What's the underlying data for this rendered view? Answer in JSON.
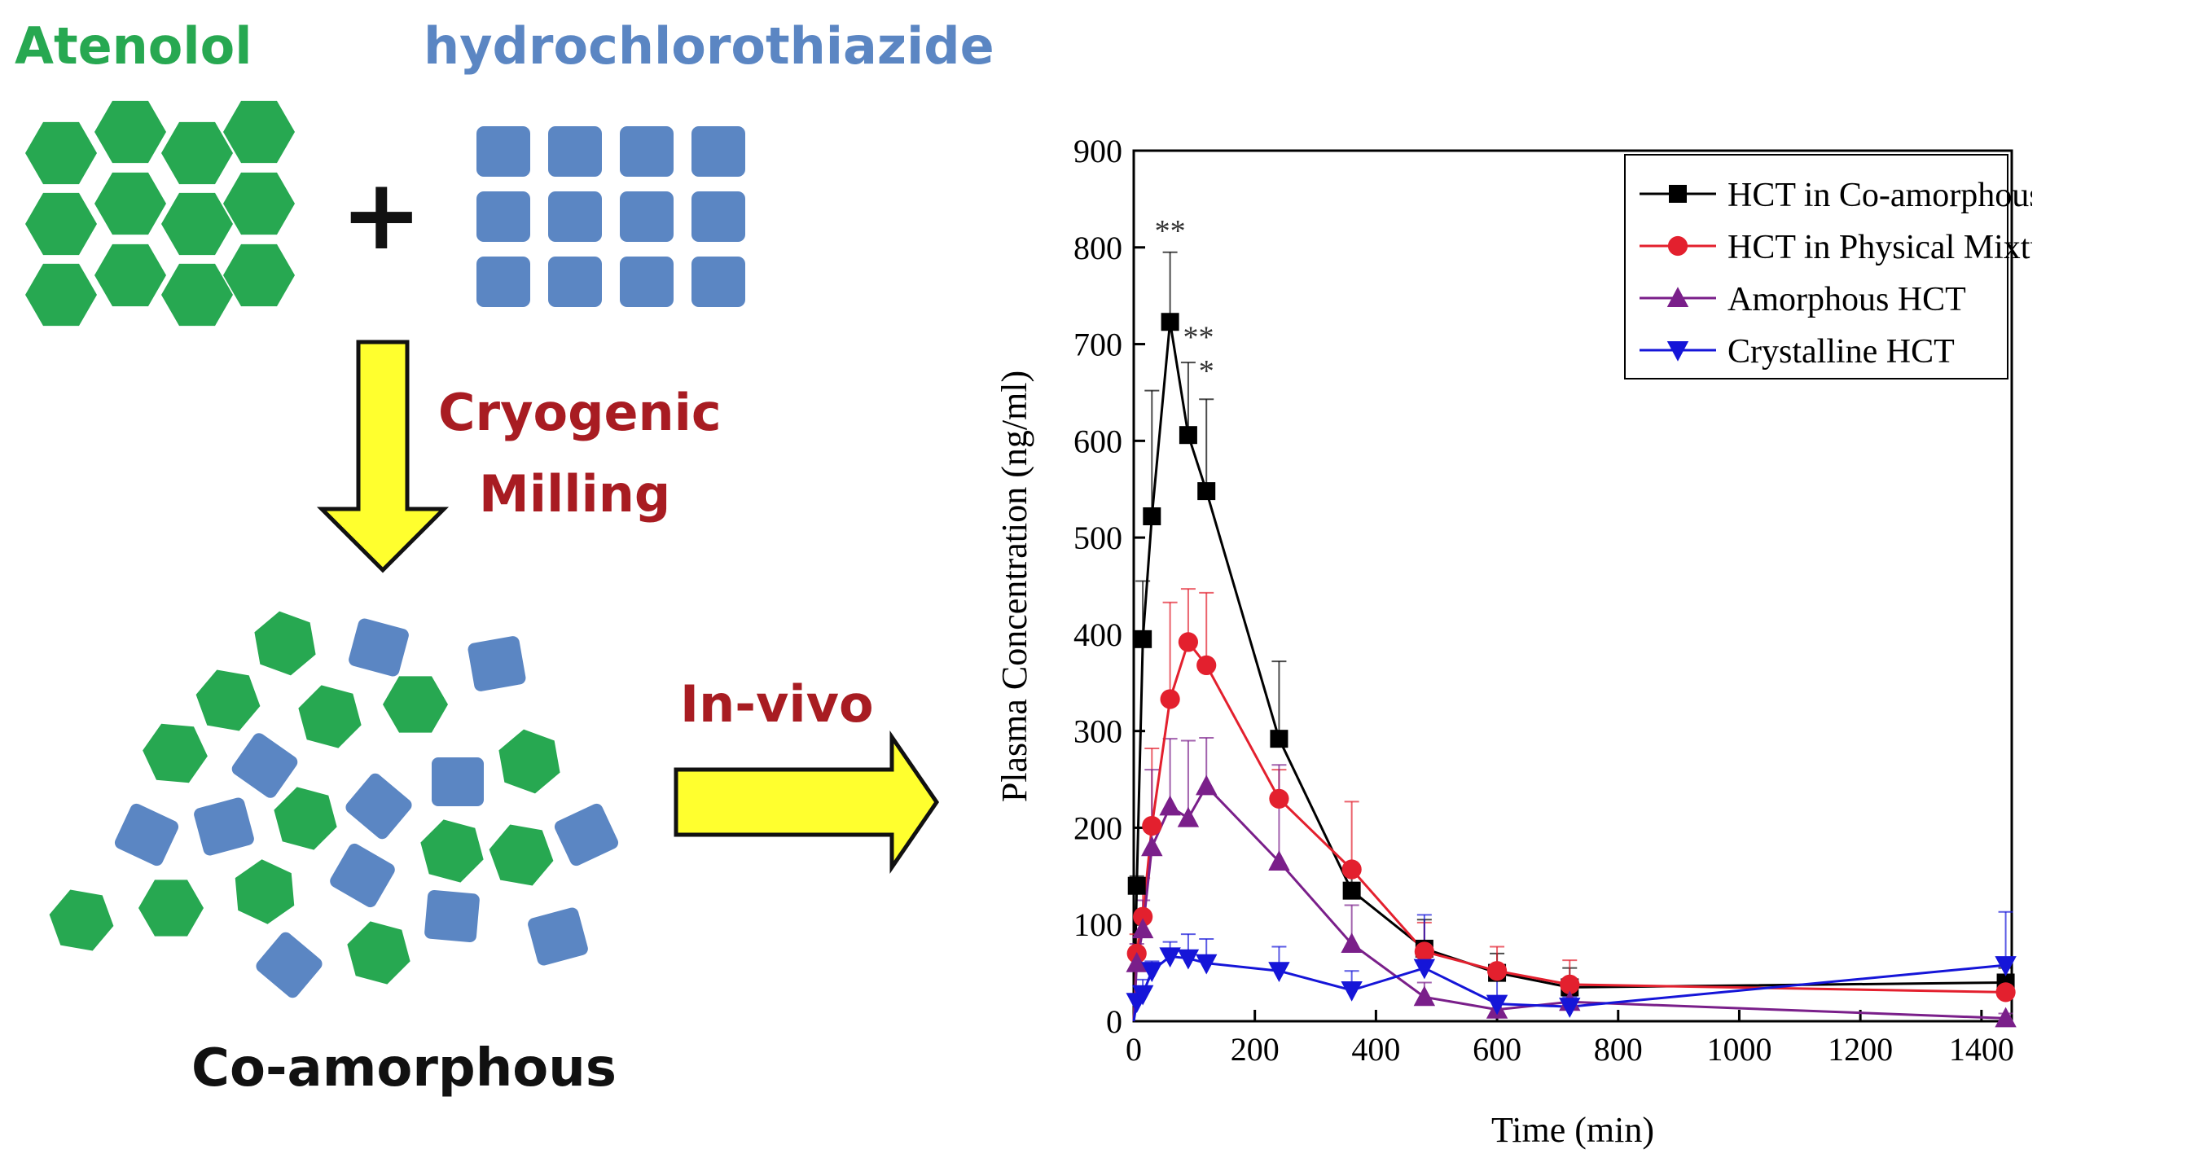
{
  "scheme": {
    "drug1_label": "Atenolol",
    "drug2_label": "hydrochlorothiazide",
    "plus_sign": "+",
    "process_label_line1": "Cryogenic",
    "process_label_line2": "Milling",
    "product_label": "Co-amorphous",
    "test_label": "In-vivo",
    "colors": {
      "atenolol": "#27a851",
      "hct": "#5b86c3",
      "process_text": "#a81c22",
      "arrow_fill": "#ffff2e"
    }
  },
  "chart_data": {
    "type": "line",
    "title": "",
    "xlabel": "Time (min)",
    "ylabel": "Plasma Concentration (ng/ml)",
    "xlim": [
      0,
      1450
    ],
    "ylim": [
      0,
      900
    ],
    "xticks": [
      0,
      200,
      400,
      600,
      800,
      1000,
      1200,
      1400
    ],
    "yticks": [
      0,
      100,
      200,
      300,
      400,
      500,
      600,
      700,
      800,
      900
    ],
    "legend_position": "top-right",
    "series": [
      {
        "name": "HCT in Co-amorphous",
        "color": "#000000",
        "marker": "square",
        "x": [
          0,
          5,
          15,
          30,
          60,
          90,
          120,
          240,
          360,
          480,
          600,
          720,
          1440
        ],
        "y": [
          0,
          140,
          395,
          522,
          723,
          606,
          548,
          292,
          135,
          75,
          50,
          35,
          40
        ],
        "err": [
          0,
          10,
          60,
          130,
          72,
          75,
          95,
          80,
          25,
          30,
          20,
          20,
          15
        ]
      },
      {
        "name": "HCT in Physical Mixture",
        "color": "#e3202e",
        "marker": "circle",
        "x": [
          0,
          5,
          15,
          30,
          60,
          90,
          120,
          240,
          360,
          480,
          600,
          720,
          1440
        ],
        "y": [
          0,
          70,
          108,
          202,
          333,
          392,
          368,
          230,
          157,
          72,
          52,
          38,
          30
        ],
        "err": [
          0,
          20,
          40,
          80,
          100,
          55,
          75,
          30,
          70,
          30,
          25,
          25,
          10
        ]
      },
      {
        "name": "Amorphous HCT",
        "color": "#7a1f8a",
        "marker": "triangle-up",
        "x": [
          0,
          5,
          15,
          30,
          60,
          90,
          120,
          240,
          360,
          480,
          600,
          720,
          1440
        ],
        "y": [
          0,
          60,
          95,
          180,
          222,
          210,
          243,
          165,
          80,
          25,
          12,
          20,
          3
        ],
        "err": [
          0,
          20,
          30,
          80,
          70,
          80,
          50,
          100,
          40,
          15,
          10,
          10,
          5
        ]
      },
      {
        "name": "Crystalline HCT",
        "color": "#1515d8",
        "marker": "triangle-down",
        "x": [
          0,
          5,
          15,
          30,
          60,
          90,
          120,
          240,
          360,
          480,
          600,
          720,
          1440
        ],
        "y": [
          0,
          20,
          28,
          52,
          67,
          65,
          60,
          52,
          32,
          55,
          18,
          15,
          58
        ],
        "err": [
          0,
          8,
          15,
          10,
          15,
          25,
          25,
          25,
          20,
          55,
          30,
          10,
          55
        ]
      }
    ],
    "annotations": [
      {
        "text": "**",
        "x": 60,
        "y": 800
      },
      {
        "text": "**",
        "x": 107,
        "y": 690
      },
      {
        "text": "*",
        "x": 120,
        "y": 655
      }
    ]
  }
}
